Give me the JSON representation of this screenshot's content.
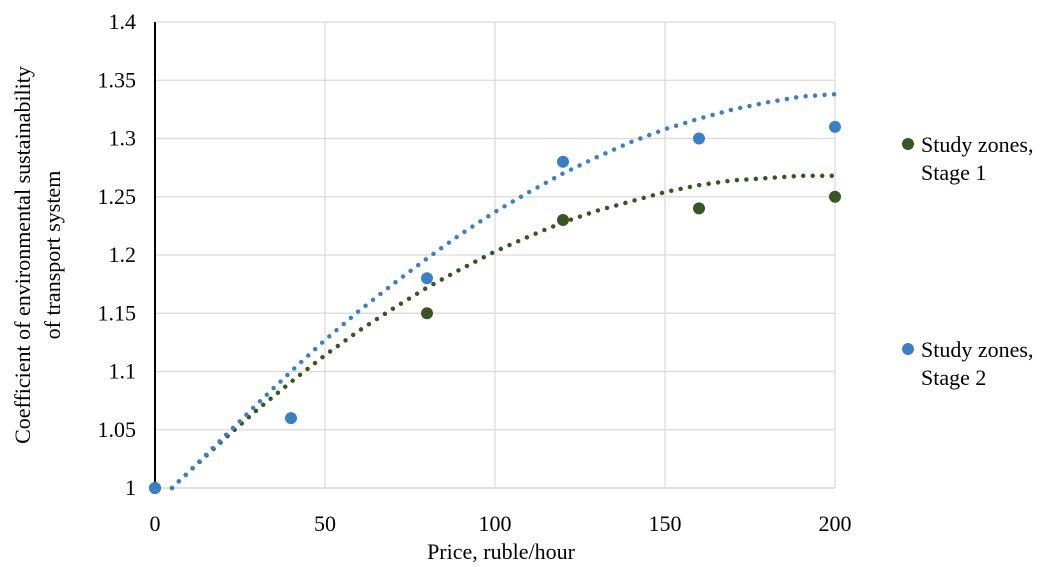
{
  "chart_data": {
    "type": "scatter",
    "xlabel": "Price, ruble/hour",
    "ylabel_lines": [
      "Coefficient of environmental sustainability",
      "of transport system"
    ],
    "xlim": [
      0,
      200
    ],
    "ylim": [
      1,
      1.4
    ],
    "x_ticks": [
      0,
      50,
      100,
      150,
      200
    ],
    "y_ticks": [
      1,
      1.05,
      1.1,
      1.15,
      1.2,
      1.25,
      1.3,
      1.35,
      1.4
    ],
    "grid": true,
    "legend_position": "right",
    "trendline": "polynomial (dotted)",
    "series": [
      {
        "name_lines": [
          "Study zones,",
          "Stage 1"
        ],
        "color": "#375623",
        "x": [
          0,
          80,
          120,
          160,
          200
        ],
        "y": [
          1.0,
          1.15,
          1.23,
          1.24,
          1.25
        ],
        "trend": [
          [
            5,
            1.0
          ],
          [
            10,
            1.014
          ],
          [
            20,
            1.041
          ],
          [
            30,
            1.067
          ],
          [
            40,
            1.091
          ],
          [
            50,
            1.114
          ],
          [
            60,
            1.135
          ],
          [
            70,
            1.154
          ],
          [
            80,
            1.172
          ],
          [
            90,
            1.188
          ],
          [
            100,
            1.203
          ],
          [
            110,
            1.216
          ],
          [
            120,
            1.228
          ],
          [
            130,
            1.238
          ],
          [
            140,
            1.246
          ],
          [
            150,
            1.254
          ],
          [
            160,
            1.26
          ],
          [
            170,
            1.264
          ],
          [
            180,
            1.266
          ],
          [
            190,
            1.268
          ],
          [
            200,
            1.268
          ]
        ]
      },
      {
        "name_lines": [
          "Study zones,",
          "Stage 2"
        ],
        "color": "#3C7FC3",
        "x": [
          0,
          40,
          80,
          120,
          160,
          200
        ],
        "y": [
          1.0,
          1.06,
          1.18,
          1.28,
          1.3,
          1.31
        ],
        "trend": [
          [
            5,
            1.0
          ],
          [
            10,
            1.014
          ],
          [
            20,
            1.043
          ],
          [
            30,
            1.072
          ],
          [
            40,
            1.1
          ],
          [
            50,
            1.127
          ],
          [
            60,
            1.152
          ],
          [
            70,
            1.175
          ],
          [
            80,
            1.197
          ],
          [
            90,
            1.218
          ],
          [
            100,
            1.237
          ],
          [
            110,
            1.254
          ],
          [
            120,
            1.27
          ],
          [
            130,
            1.284
          ],
          [
            140,
            1.297
          ],
          [
            150,
            1.308
          ],
          [
            160,
            1.317
          ],
          [
            170,
            1.325
          ],
          [
            180,
            1.331
          ],
          [
            190,
            1.336
          ],
          [
            200,
            1.338
          ]
        ]
      }
    ]
  }
}
